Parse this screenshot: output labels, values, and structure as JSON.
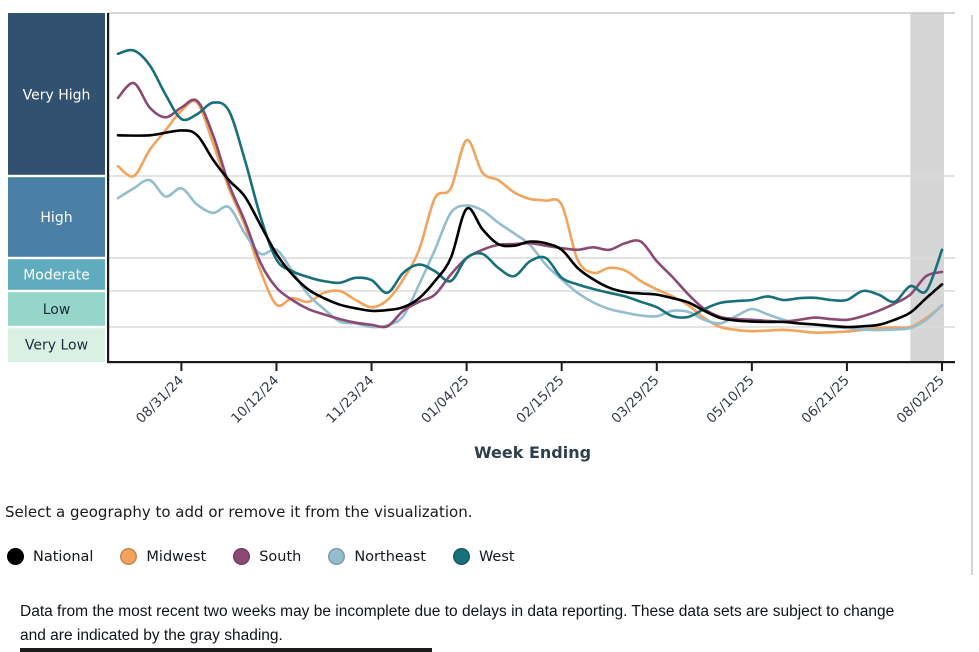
{
  "chart": {
    "activity_bands": [
      {
        "id": "very-high",
        "label": "Very High",
        "color": "#32506F",
        "label_color": "#FFFFFF",
        "level_range": [
          4,
          5
        ]
      },
      {
        "id": "high",
        "label": "High",
        "color": "#4A7FA6",
        "label_color": "#FFFFFF",
        "level_range": [
          3,
          4
        ]
      },
      {
        "id": "moderate",
        "label": "Moderate",
        "color": "#60ACBE",
        "label_color": "#FFFFFF",
        "level_range": [
          2,
          3
        ]
      },
      {
        "id": "low",
        "label": "Low",
        "color": "#96D5C9",
        "label_color": "#1B2B3A",
        "level_range": [
          1,
          2
        ]
      },
      {
        "id": "very-low",
        "label": "Very Low",
        "color": "#DAF0E4",
        "label_color": "#1B2B3A",
        "level_range": [
          0,
          1
        ]
      }
    ],
    "shaded_recent_region": {
      "from_week": 50,
      "to_week": 52,
      "color": "#D6D6D6"
    },
    "gridline_color": "#DADADA",
    "axis_color": "#1A1A1A",
    "tick_label_color": "#333B46",
    "axis_title_color": "#2F3E4C"
  },
  "chart_data": {
    "type": "line",
    "xlabel": "Week Ending",
    "x_range_weeks": [
      0,
      52
    ],
    "x_ticks": [
      {
        "week": 4,
        "label": "08/31/24"
      },
      {
        "week": 10,
        "label": "10/12/24"
      },
      {
        "week": 16,
        "label": "11/23/24"
      },
      {
        "week": 22,
        "label": "01/04/25"
      },
      {
        "week": 28,
        "label": "02/15/25"
      },
      {
        "week": 34,
        "label": "03/29/25"
      },
      {
        "week": 40,
        "label": "05/10/25"
      },
      {
        "week": 46,
        "label": "06/21/25"
      },
      {
        "week": 52,
        "label": "08/02/25"
      }
    ],
    "y_scale_note": "categorical activity levels; value v in 0-5 where 1=Very Low/Low boundary, 2=Low/Moderate, 3=Moderate/High, 4=High/Very High",
    "ylim": [
      0,
      5
    ],
    "grid": "horizontal lines at band boundaries",
    "legend_position": "below chart",
    "series": [
      {
        "name": "National",
        "color": "#000000",
        "points": [
          [
            0,
            4.25
          ],
          [
            2,
            4.25
          ],
          [
            4,
            4.28
          ],
          [
            5,
            4.25
          ],
          [
            6,
            4.1
          ],
          [
            7,
            3.95
          ],
          [
            8,
            3.75
          ],
          [
            9,
            3.4
          ],
          [
            10,
            3.05
          ],
          [
            11,
            2.5
          ],
          [
            12,
            2.05
          ],
          [
            13,
            1.8
          ],
          [
            14,
            1.62
          ],
          [
            15,
            1.52
          ],
          [
            16,
            1.45
          ],
          [
            17,
            1.47
          ],
          [
            18,
            1.55
          ],
          [
            19,
            1.8
          ],
          [
            20,
            2.3
          ],
          [
            21,
            3.0
          ],
          [
            22,
            3.6
          ],
          [
            23,
            3.35
          ],
          [
            24,
            3.17
          ],
          [
            25,
            3.15
          ],
          [
            26,
            3.2
          ],
          [
            27,
            3.18
          ],
          [
            28,
            3.1
          ],
          [
            29,
            2.7
          ],
          [
            30,
            2.35
          ],
          [
            31,
            2.1
          ],
          [
            32,
            1.97
          ],
          [
            33,
            1.93
          ],
          [
            34,
            1.9
          ],
          [
            35,
            1.8
          ],
          [
            36,
            1.68
          ],
          [
            37,
            1.45
          ],
          [
            38,
            1.25
          ],
          [
            39,
            1.18
          ],
          [
            40,
            1.15
          ],
          [
            41,
            1.14
          ],
          [
            42,
            1.14
          ],
          [
            43,
            1.1
          ],
          [
            44,
            1.07
          ],
          [
            45,
            1.03
          ],
          [
            46,
            1.0
          ],
          [
            47,
            1.02
          ],
          [
            48,
            1.06
          ],
          [
            49,
            1.2
          ],
          [
            50,
            1.4
          ],
          [
            51,
            1.8
          ],
          [
            52,
            2.2
          ]
        ]
      },
      {
        "name": "Midwest",
        "color": "#F2A35C",
        "points": [
          [
            0,
            4.06
          ],
          [
            1,
            4.0
          ],
          [
            2,
            4.16
          ],
          [
            3,
            4.28
          ],
          [
            4,
            4.4
          ],
          [
            5,
            4.45
          ],
          [
            6,
            4.2
          ],
          [
            7,
            3.85
          ],
          [
            8,
            3.4
          ],
          [
            9,
            2.6
          ],
          [
            10,
            1.62
          ],
          [
            11,
            1.8
          ],
          [
            12,
            1.7
          ],
          [
            13,
            1.95
          ],
          [
            14,
            2.0
          ],
          [
            15,
            1.75
          ],
          [
            16,
            1.55
          ],
          [
            17,
            1.75
          ],
          [
            18,
            2.35
          ],
          [
            19,
            3.1
          ],
          [
            20,
            3.73
          ],
          [
            21,
            3.85
          ],
          [
            22,
            4.22
          ],
          [
            23,
            4.02
          ],
          [
            24,
            3.95
          ],
          [
            25,
            3.8
          ],
          [
            26,
            3.72
          ],
          [
            27,
            3.7
          ],
          [
            28,
            3.65
          ],
          [
            29,
            2.95
          ],
          [
            30,
            2.55
          ],
          [
            31,
            2.7
          ],
          [
            32,
            2.62
          ],
          [
            33,
            2.3
          ],
          [
            34,
            2.05
          ],
          [
            35,
            1.85
          ],
          [
            36,
            1.6
          ],
          [
            37,
            1.25
          ],
          [
            38,
            1.0
          ],
          [
            39,
            0.92
          ],
          [
            40,
            0.88
          ],
          [
            41,
            0.9
          ],
          [
            42,
            0.92
          ],
          [
            43,
            0.88
          ],
          [
            44,
            0.84
          ],
          [
            45,
            0.85
          ],
          [
            46,
            0.87
          ],
          [
            47,
            0.92
          ],
          [
            48,
            0.97
          ],
          [
            49,
            0.99
          ],
          [
            50,
            1.0
          ],
          [
            51,
            1.25
          ],
          [
            52,
            1.6
          ]
        ]
      },
      {
        "name": "South",
        "color": "#8A4A73",
        "points": [
          [
            0,
            4.48
          ],
          [
            1,
            4.57
          ],
          [
            2,
            4.42
          ],
          [
            3,
            4.36
          ],
          [
            4,
            4.42
          ],
          [
            5,
            4.46
          ],
          [
            6,
            4.25
          ],
          [
            7,
            3.9
          ],
          [
            8,
            3.45
          ],
          [
            9,
            2.85
          ],
          [
            10,
            2.1
          ],
          [
            11,
            1.75
          ],
          [
            12,
            1.5
          ],
          [
            13,
            1.35
          ],
          [
            14,
            1.22
          ],
          [
            15,
            1.12
          ],
          [
            16,
            1.06
          ],
          [
            17,
            1.02
          ],
          [
            18,
            1.45
          ],
          [
            19,
            1.7
          ],
          [
            20,
            1.9
          ],
          [
            21,
            2.5
          ],
          [
            22,
            3.0
          ],
          [
            23,
            3.1
          ],
          [
            24,
            3.16
          ],
          [
            25,
            3.17
          ],
          [
            26,
            3.18
          ],
          [
            27,
            3.15
          ],
          [
            28,
            3.12
          ],
          [
            29,
            3.1
          ],
          [
            30,
            3.13
          ],
          [
            31,
            3.1
          ],
          [
            32,
            3.18
          ],
          [
            33,
            3.2
          ],
          [
            34,
            2.9
          ],
          [
            35,
            2.42
          ],
          [
            36,
            1.9
          ],
          [
            37,
            1.5
          ],
          [
            38,
            1.28
          ],
          [
            39,
            1.22
          ],
          [
            40,
            1.2
          ],
          [
            41,
            1.17
          ],
          [
            42,
            1.15
          ],
          [
            43,
            1.2
          ],
          [
            44,
            1.26
          ],
          [
            45,
            1.22
          ],
          [
            46,
            1.2
          ],
          [
            47,
            1.3
          ],
          [
            48,
            1.45
          ],
          [
            49,
            1.65
          ],
          [
            50,
            1.9
          ],
          [
            51,
            2.45
          ],
          [
            52,
            2.58
          ]
        ]
      },
      {
        "name": "Northeast",
        "color": "#94BED0",
        "points": [
          [
            0,
            3.73
          ],
          [
            1,
            3.85
          ],
          [
            2,
            3.95
          ],
          [
            3,
            3.75
          ],
          [
            4,
            3.85
          ],
          [
            5,
            3.65
          ],
          [
            6,
            3.55
          ],
          [
            7,
            3.62
          ],
          [
            8,
            3.3
          ],
          [
            9,
            3.05
          ],
          [
            10,
            3.1
          ],
          [
            11,
            2.6
          ],
          [
            12,
            1.9
          ],
          [
            13,
            1.5
          ],
          [
            14,
            1.15
          ],
          [
            15,
            1.1
          ],
          [
            16,
            1.0
          ],
          [
            17,
            1.05
          ],
          [
            18,
            1.3
          ],
          [
            19,
            2.2
          ],
          [
            20,
            3.1
          ],
          [
            21,
            3.55
          ],
          [
            22,
            3.64
          ],
          [
            23,
            3.58
          ],
          [
            24,
            3.43
          ],
          [
            25,
            3.3
          ],
          [
            26,
            3.16
          ],
          [
            27,
            2.8
          ],
          [
            28,
            2.35
          ],
          [
            29,
            1.95
          ],
          [
            30,
            1.68
          ],
          [
            31,
            1.5
          ],
          [
            32,
            1.4
          ],
          [
            33,
            1.32
          ],
          [
            34,
            1.3
          ],
          [
            35,
            1.45
          ],
          [
            36,
            1.42
          ],
          [
            37,
            1.2
          ],
          [
            38,
            1.1
          ],
          [
            39,
            1.3
          ],
          [
            40,
            1.5
          ],
          [
            41,
            1.35
          ],
          [
            42,
            1.2
          ],
          [
            43,
            1.1
          ],
          [
            44,
            1.06
          ],
          [
            45,
            1.0
          ],
          [
            46,
            0.97
          ],
          [
            47,
            0.93
          ],
          [
            48,
            0.91
          ],
          [
            49,
            0.93
          ],
          [
            50,
            0.97
          ],
          [
            51,
            1.2
          ],
          [
            52,
            1.6
          ]
        ]
      },
      {
        "name": "West",
        "color": "#18707A",
        "points": [
          [
            0,
            4.75
          ],
          [
            1,
            4.77
          ],
          [
            2,
            4.68
          ],
          [
            3,
            4.5
          ],
          [
            4,
            4.35
          ],
          [
            5,
            4.38
          ],
          [
            6,
            4.45
          ],
          [
            7,
            4.4
          ],
          [
            8,
            4.1
          ],
          [
            9,
            3.5
          ],
          [
            10,
            2.95
          ],
          [
            11,
            2.6
          ],
          [
            12,
            2.42
          ],
          [
            13,
            2.3
          ],
          [
            14,
            2.25
          ],
          [
            15,
            2.4
          ],
          [
            16,
            2.33
          ],
          [
            17,
            1.95
          ],
          [
            18,
            2.55
          ],
          [
            19,
            2.8
          ],
          [
            20,
            2.6
          ],
          [
            21,
            2.3
          ],
          [
            22,
            3.0
          ],
          [
            23,
            3.05
          ],
          [
            24,
            2.7
          ],
          [
            25,
            2.45
          ],
          [
            26,
            2.9
          ],
          [
            27,
            3.0
          ],
          [
            28,
            2.4
          ],
          [
            29,
            2.2
          ],
          [
            30,
            2.06
          ],
          [
            31,
            1.95
          ],
          [
            32,
            1.85
          ],
          [
            33,
            1.7
          ],
          [
            34,
            1.55
          ],
          [
            35,
            1.3
          ],
          [
            36,
            1.28
          ],
          [
            37,
            1.5
          ],
          [
            38,
            1.67
          ],
          [
            39,
            1.72
          ],
          [
            40,
            1.75
          ],
          [
            41,
            1.85
          ],
          [
            42,
            1.75
          ],
          [
            43,
            1.8
          ],
          [
            44,
            1.81
          ],
          [
            45,
            1.75
          ],
          [
            46,
            1.75
          ],
          [
            47,
            2.0
          ],
          [
            48,
            1.9
          ],
          [
            49,
            1.7
          ],
          [
            50,
            2.15
          ],
          [
            51,
            2.0
          ],
          [
            52,
            3.1
          ]
        ]
      }
    ]
  },
  "controls": {
    "select_prompt": "Select a geography to add or remove it from the visualization.",
    "legend": [
      {
        "label": "National",
        "color": "#000000"
      },
      {
        "label": "Midwest",
        "color": "#F2A35C"
      },
      {
        "label": "South",
        "color": "#8A4A73"
      },
      {
        "label": "Northeast",
        "color": "#94BED0"
      },
      {
        "label": "West",
        "color": "#18707A"
      }
    ]
  },
  "footnote": {
    "text": "Data from the most recent two weeks may be incomplete due to delays in data reporting. These data sets are subject to change and are indicated by the gray shading."
  }
}
